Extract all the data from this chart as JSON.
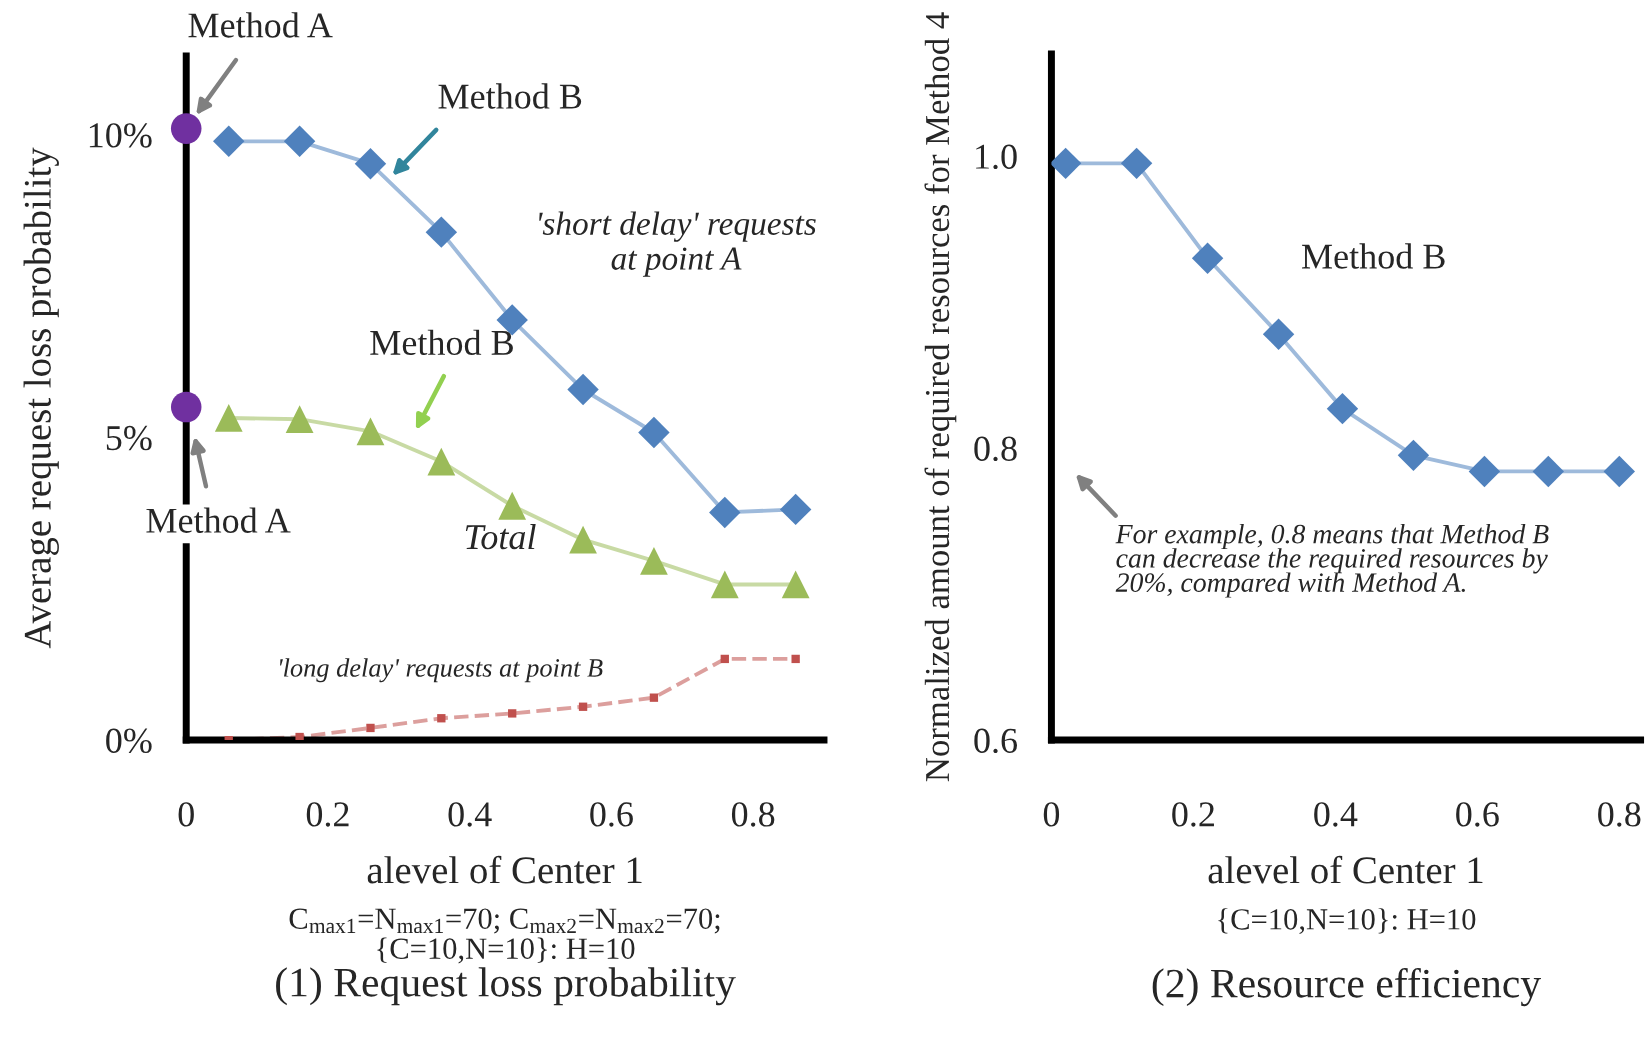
{
  "chart_data": [
    {
      "type": "line",
      "title": "(1) Request loss probability",
      "xlabel": "alevel of Center 1",
      "ylabel": "Average request loss probability",
      "xlim": [
        0,
        0.9
      ],
      "xticks": [
        0,
        0.2,
        0.4,
        0.6,
        0.8
      ],
      "ylim": [
        0,
        11.3
      ],
      "yticks": [
        {
          "value": 0,
          "label": "0%"
        },
        {
          "value": 5,
          "label": "5%"
        },
        {
          "value": 10,
          "label": "10%"
        }
      ],
      "grid": false,
      "legend": false,
      "series": [
        {
          "name": "'short delay' requests\nat point A",
          "color": "#4f81bd",
          "marker": "diamond",
          "line_style": "solid",
          "x": [
            0.06,
            0.16,
            0.26,
            0.36,
            0.46,
            0.56,
            0.66,
            0.76,
            0.86
          ],
          "values": [
            9.89,
            9.89,
            9.52,
            8.39,
            6.94,
            5.79,
            5.08,
            3.76,
            3.81
          ]
        },
        {
          "name": "Total",
          "color": "#9bbb59",
          "marker": "triangle",
          "line_style": "solid",
          "x": [
            0.06,
            0.16,
            0.26,
            0.36,
            0.46,
            0.56,
            0.66,
            0.76,
            0.86
          ],
          "values": [
            5.32,
            5.3,
            5.1,
            4.6,
            3.87,
            3.31,
            2.96,
            2.57,
            2.57
          ]
        },
        {
          "name": "'long delay' requests at point B",
          "color": "#c0504d",
          "marker": "square",
          "line_style": "dashed",
          "x": [
            0.06,
            0.16,
            0.26,
            0.36,
            0.46,
            0.56,
            0.66,
            0.76,
            0.86
          ],
          "values": [
            0.0,
            0.05,
            0.2,
            0.36,
            0.44,
            0.55,
            0.7,
            1.34,
            1.34
          ]
        },
        {
          "type": "scatter",
          "color": "#7030a0",
          "marker": "circle",
          "x": [
            0,
            0
          ],
          "values": [
            10.1,
            5.5
          ]
        }
      ],
      "annotations": [
        {
          "text": "Method A",
          "x": 0,
          "y": 10.1
        },
        "Method B",
        "Method B",
        "Method A",
        "C$_{max1}$=N$_{max1}$=70; C$_{max2}$=N$_{max2}$=70;\n{C=10,N=10}: H=10"
      ]
    },
    {
      "type": "line",
      "title": "(2) Resource efficiency",
      "xlabel": "alevel of Center 1",
      "ylabel": "Normalized amount of required resources for Method 4",
      "xlim": [
        0,
        0.83
      ],
      "xticks": [
        0,
        0.2,
        0.4,
        0.6,
        0.8
      ],
      "ylim": [
        0.6,
        1.07
      ],
      "yticks": [
        {
          "value": 0.6,
          "label": "0.6"
        },
        {
          "value": 0.8,
          "label": "0.8"
        },
        {
          "value": 1.0,
          "label": "1.0"
        }
      ],
      "grid": false,
      "legend": false,
      "series": [
        {
          "name": "Method B",
          "color": "#4f81bd",
          "marker": "diamond",
          "line_style": "solid",
          "x": [
            0.02,
            0.12,
            0.22,
            0.32,
            0.41,
            0.51,
            0.61,
            0.7,
            0.8
          ],
          "values": [
            0.995,
            0.995,
            0.93,
            0.878,
            0.827,
            0.795,
            0.784,
            0.784,
            0.784
          ]
        }
      ],
      "annotations": [
        "For example, 0.8 means that Method B\ncan decrease the required resources by\n20%, compared with Method A.",
        "{C=10,N=10}: H=10"
      ]
    }
  ]
}
